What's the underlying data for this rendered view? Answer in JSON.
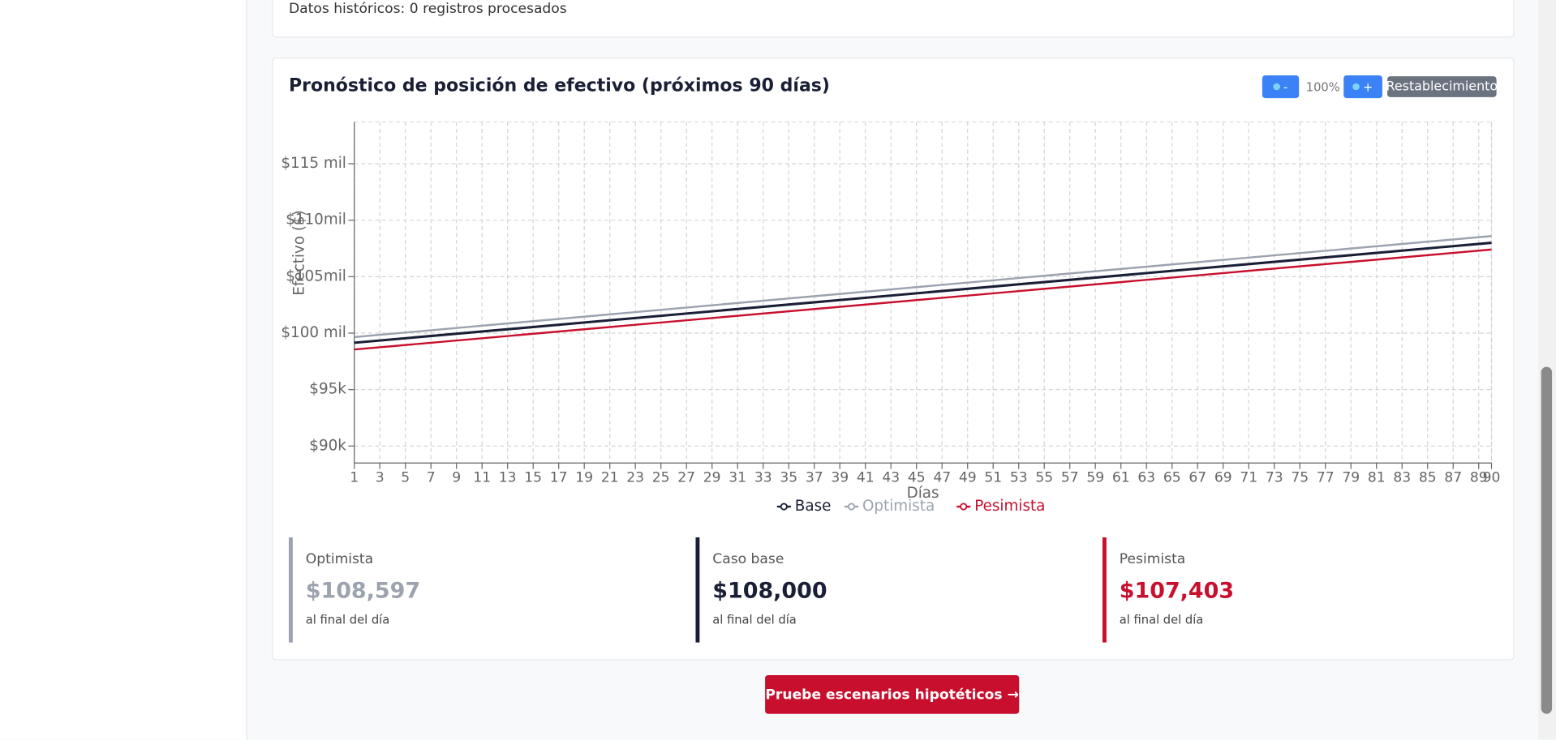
{
  "page": {
    "history_text": "Datos históricos: 0 registros procesados",
    "zoom_out": "-",
    "zoom_level": "100%",
    "zoom_in": "+",
    "reset": "Restablecimiento",
    "cards": [
      {
        "label": "Optimista",
        "value": "$108,597",
        "note": "al final del día"
      },
      {
        "label": "Caso base",
        "value": "$108,000",
        "note": "al final del día"
      },
      {
        "label": "Pesimista",
        "value": "$107,403",
        "note": "al final del día"
      }
    ],
    "cta": "Pruebe escenarios hipotéticos →"
  },
  "chart_data": {
    "type": "line",
    "title": "Pronóstico de posición de efectivo (próximos 90 días)",
    "x_label": "Días",
    "y_label": "Efectivo ($)",
    "x": [
      1,
      90
    ],
    "series": [
      {
        "name": "Base",
        "color": "#1a1f36",
        "values": [
          99150,
          108000
        ]
      },
      {
        "name": "Optimista",
        "color": "#9ca3af",
        "values": [
          99650,
          108597
        ]
      },
      {
        "name": "Pesimista",
        "color": "#c8102e",
        "values": [
          98550,
          107403
        ]
      }
    ],
    "xlim": [
      1,
      90
    ],
    "xticks": [
      1,
      3,
      5,
      7,
      9,
      11,
      13,
      15,
      17,
      19,
      21,
      23,
      25,
      27,
      29,
      31,
      33,
      35,
      37,
      39,
      41,
      43,
      45,
      47,
      49,
      51,
      53,
      55,
      57,
      59,
      61,
      63,
      65,
      67,
      69,
      71,
      73,
      75,
      77,
      79,
      81,
      83,
      85,
      87,
      89,
      90
    ],
    "ylim": [
      88500,
      118700
    ],
    "yticks": [
      {
        "value": 90000,
        "label": "$90k"
      },
      {
        "value": 95000,
        "label": "$95k"
      },
      {
        "value": 100000,
        "label": "$100 mil"
      },
      {
        "value": 105000,
        "label": "$105mil"
      },
      {
        "value": 110000,
        "label": "$110mil"
      },
      {
        "value": 115000,
        "label": "$115 mil"
      }
    ],
    "grid": true,
    "legend": "bottom"
  }
}
